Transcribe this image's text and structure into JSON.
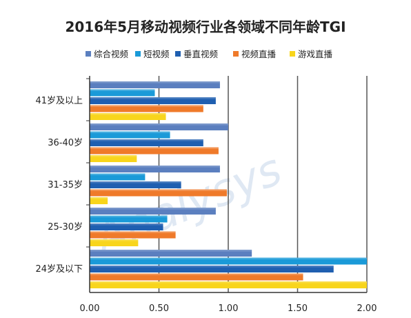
{
  "chart_data": {
    "type": "bar",
    "orientation": "horizontal",
    "title": "2016年5月移动视频行业各领域不同年龄TGI",
    "watermark": "Analysys",
    "categories": [
      "41岁及以上",
      "36-40岁",
      "31-35岁",
      "25-30岁",
      "24岁及以下"
    ],
    "series": [
      {
        "name": "综合视频",
        "color": "#5b7fbf",
        "values": [
          0.94,
          1.0,
          0.94,
          0.91,
          1.17
        ]
      },
      {
        "name": "短视频",
        "color": "#1a9ad8",
        "values": [
          0.47,
          0.58,
          0.4,
          0.56,
          2.0
        ]
      },
      {
        "name": "垂直视频",
        "color": "#1f5fb0",
        "values": [
          0.91,
          0.82,
          0.66,
          0.53,
          1.76
        ]
      },
      {
        "name": "视频直播",
        "color": "#ef7a2a",
        "values": [
          0.82,
          0.93,
          0.99,
          0.62,
          1.54
        ]
      },
      {
        "name": "游戏直播",
        "color": "#f8d51c",
        "values": [
          0.55,
          0.34,
          0.13,
          0.35,
          2.0
        ]
      }
    ],
    "xlim": [
      0,
      2
    ],
    "xticks": [
      "0.00",
      "0.50",
      "1.00",
      "1.50",
      "2.00"
    ],
    "legend_position": "top",
    "grid": true
  }
}
